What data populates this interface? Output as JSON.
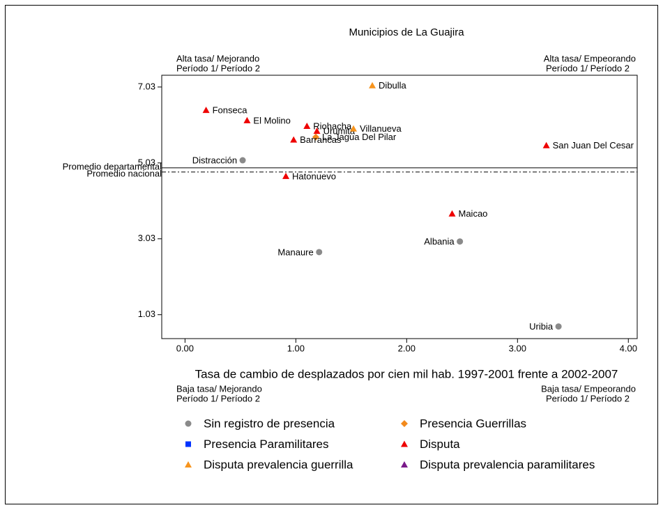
{
  "chart_data": {
    "type": "scatter",
    "title": "Municipios de La Guajira",
    "x_label": "Tasa de cambio de desplazados por cien mil hab. 1997-2001 frente a 2002-2007",
    "annotations": {
      "top_left": [
        "Alta tasa/ Mejorando",
        "Período 1/ Período 2"
      ],
      "top_right": [
        "Alta tasa/ Empeorando",
        "Período 1/ Período 2"
      ],
      "bottom_left": [
        "Baja tasa/ Mejorando",
        "Período 1/ Período 2"
      ],
      "bottom_right": [
        "Baja tasa/ Empeorando",
        "Período 1/ Período 2"
      ]
    },
    "xlim": [
      -0.21,
      4.08
    ],
    "ylim": [
      0.4,
      7.34
    ],
    "xticks": [
      {
        "value": 0,
        "label": "0.00"
      },
      {
        "value": 1,
        "label": "1.00"
      },
      {
        "value": 2,
        "label": "2.00"
      },
      {
        "value": 3,
        "label": "3.00"
      },
      {
        "value": 4,
        "label": "4.00"
      }
    ],
    "yticks": [
      1.03,
      3.03,
      5.03,
      7.03
    ],
    "reference_lines": [
      {
        "label": "Promedio departamental",
        "value": 4.9,
        "style": "solid"
      },
      {
        "label": "Promedio nacional",
        "value": 4.79,
        "style": "dashdot"
      }
    ],
    "series": [
      {
        "name": "Sin registro de presencia",
        "color": "#8a8a8a",
        "marker": "circle",
        "labels": [
          "Distracción",
          "Manaure",
          "Albania",
          "Uribia"
        ],
        "x": [
          0.52,
          1.21,
          2.48,
          3.37
        ],
        "values": [
          5.1,
          2.68,
          2.96,
          0.72
        ]
      },
      {
        "name": "Presencia Guerrillas",
        "color": "#f28a1c",
        "marker": "diamond",
        "labels": [
          "La Jagua Del Pilar"
        ],
        "x": [
          1.18
        ],
        "values": [
          5.71
        ]
      },
      {
        "name": "Presencia Paramilitares",
        "color": "#0033ff",
        "marker": "square",
        "labels": [],
        "x": [],
        "values": []
      },
      {
        "name": "Disputa",
        "color": "#ee0000",
        "marker": "triangle",
        "labels": [
          "Fonseca",
          "El Molino",
          "Riohacha",
          "Urumita",
          "Barrancas",
          "San Juan Del Cesar",
          "Hatonuevo",
          "Maicao"
        ],
        "x": [
          0.19,
          0.56,
          1.1,
          1.19,
          0.98,
          3.26,
          0.91,
          2.41
        ],
        "values": [
          6.42,
          6.15,
          6.0,
          5.87,
          5.64,
          5.49,
          4.68,
          3.69
        ]
      },
      {
        "name": "Disputa prevalencia guerrilla",
        "color": "#f7941d",
        "marker": "triangle",
        "labels": [
          "Dibulla",
          "Villanueva"
        ],
        "x": [
          1.69,
          1.52
        ],
        "values": [
          7.07,
          5.93
        ]
      },
      {
        "name": "Disputa prevalencia paramilitares",
        "color": "#7a1a8a",
        "marker": "triangle",
        "labels": [],
        "x": [],
        "values": []
      }
    ]
  }
}
